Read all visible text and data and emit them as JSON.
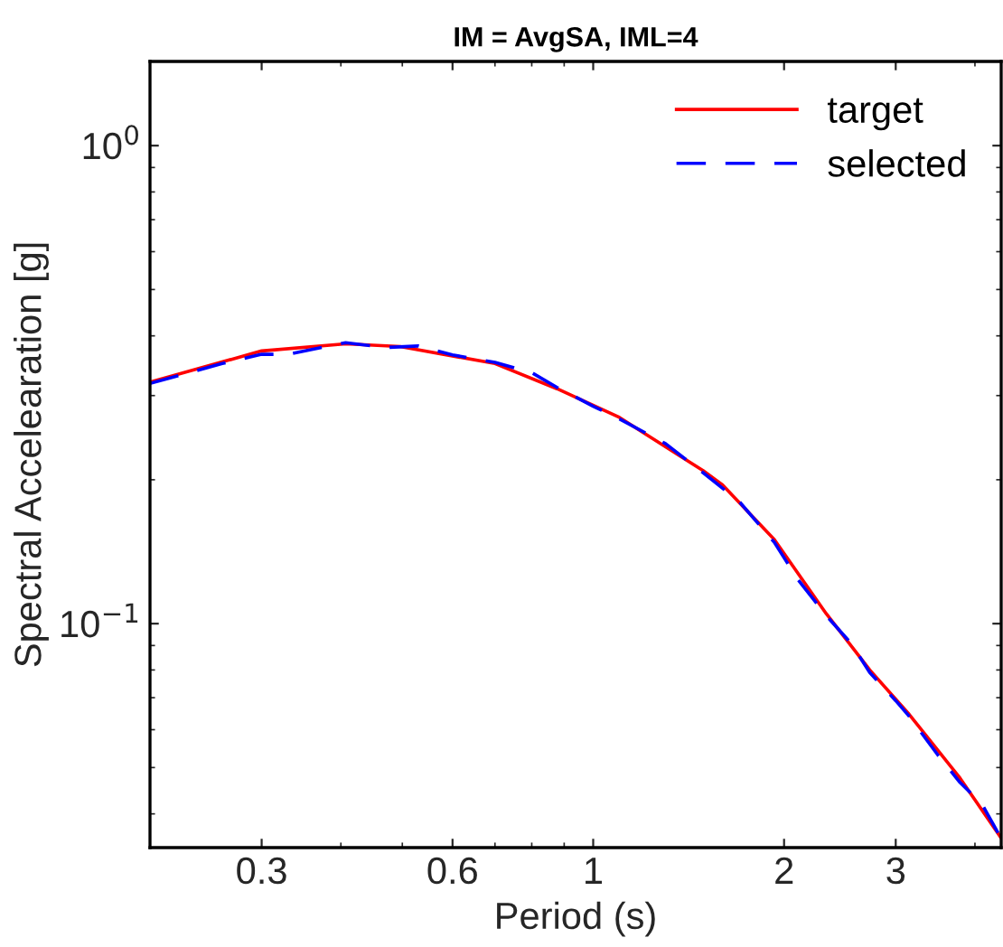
{
  "chart_data": {
    "type": "line",
    "title": "IM = AvgSA, IML=4",
    "xlabel": "Period (s)",
    "ylabel": "Spectral Accelearation [g]",
    "log": "xy",
    "grid": false,
    "legend": "top right",
    "xlim": [
      0.2,
      4.4
    ],
    "xticks": [
      0.3,
      0.6,
      1,
      2,
      3
    ],
    "ylim": [
      0.034,
      1.5
    ],
    "yticks": [
      {
        "value": 1,
        "label": "10$^{0}$"
      },
      {
        "value": 0.1,
        "label": "10$^{−1}$"
      }
    ],
    "series": [
      {
        "name": "target",
        "color": "#ff0000",
        "line_style": "solid",
        "x": [
          0.2,
          0.3,
          0.407,
          0.496,
          0.7,
          0.877,
          1.1,
          1.49,
          1.6,
          1.93,
          2.33,
          2.73,
          3.15,
          3.79,
          4.4
        ],
        "values": [
          0.32,
          0.372,
          0.385,
          0.38,
          0.35,
          0.31,
          0.27,
          0.209,
          0.195,
          0.15,
          0.105,
          0.08,
          0.0646,
          0.0475,
          0.0356
        ]
      },
      {
        "name": "selected",
        "color": "#0000ff",
        "line_style": "dashed",
        "x": [
          0.2,
          0.26,
          0.3,
          0.33,
          0.407,
          0.47,
          0.53,
          0.6,
          0.7,
          0.8,
          0.877,
          1.0,
          1.1,
          1.3,
          1.49,
          1.7,
          1.93,
          2.1,
          2.33,
          2.55,
          2.73,
          3.0,
          3.15,
          3.5,
          3.79,
          4.1,
          4.4
        ],
        "values": [
          0.318,
          0.35,
          0.366,
          0.366,
          0.387,
          0.378,
          0.381,
          0.365,
          0.352,
          0.335,
          0.312,
          0.285,
          0.268,
          0.238,
          0.207,
          0.18,
          0.148,
          0.124,
          0.104,
          0.091,
          0.079,
          0.069,
          0.064,
          0.053,
          0.0465,
          0.042,
          0.0355
        ]
      }
    ]
  }
}
